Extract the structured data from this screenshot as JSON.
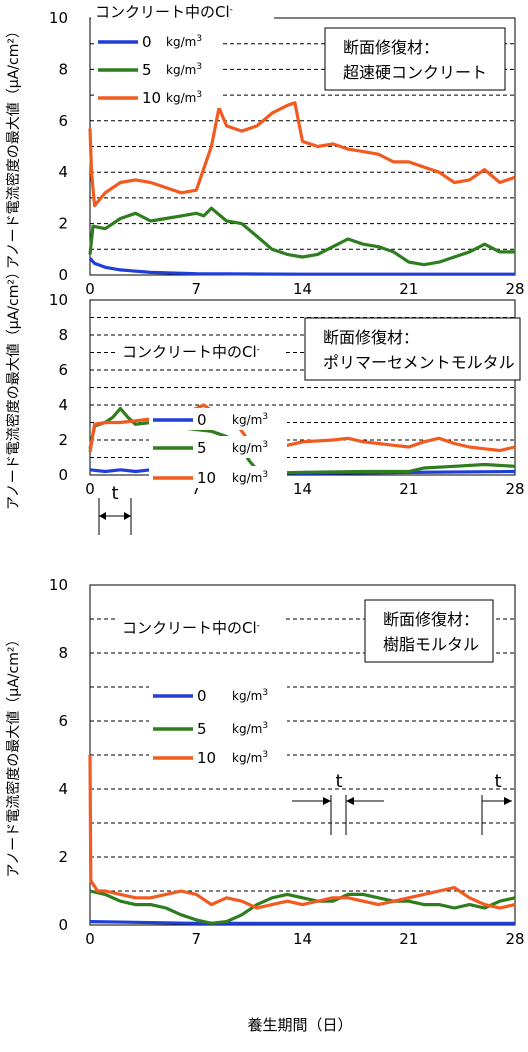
{
  "shared": {
    "xlabel": "養生期間（日）",
    "ylabel": "アノード電流密度の最大値（μA/cm²）",
    "legend_title_prefix": "コンクリート中のCl",
    "legend_title_sup": "-",
    "unit_label": "kg/m",
    "unit_sup": "3"
  },
  "chart_data": [
    {
      "type": "line",
      "box_line1": "断面修復材：",
      "box_line2": "超速硬コンクリート",
      "xlim": [
        0,
        28
      ],
      "ylim": [
        0,
        10
      ],
      "xticks": [
        "0",
        "7",
        "14",
        "21",
        "28"
      ],
      "yticks": [
        "0",
        "2",
        "4",
        "6",
        "8",
        "10"
      ],
      "grid": "horizontal dashed",
      "series": [
        {
          "name": "0",
          "color": "#1f3fd6",
          "points": [
            [
              0,
              0.65
            ],
            [
              0.3,
              0.45
            ],
            [
              1,
              0.3
            ],
            [
              2,
              0.2
            ],
            [
              4,
              0.1
            ],
            [
              7,
              0.05
            ],
            [
              14,
              0.03
            ],
            [
              28,
              0.03
            ]
          ]
        },
        {
          "name": "5",
          "color": "#2e7d1f",
          "points": [
            [
              0,
              0.8
            ],
            [
              0.2,
              1.9
            ],
            [
              1,
              1.8
            ],
            [
              2,
              2.2
            ],
            [
              3,
              2.4
            ],
            [
              4,
              2.1
            ],
            [
              5,
              2.2
            ],
            [
              6,
              2.3
            ],
            [
              7,
              2.4
            ],
            [
              7.5,
              2.3
            ],
            [
              8,
              2.6
            ],
            [
              9,
              2.1
            ],
            [
              10,
              2.0
            ],
            [
              11,
              1.5
            ],
            [
              12,
              1.0
            ],
            [
              13,
              0.8
            ],
            [
              14,
              0.7
            ],
            [
              15,
              0.8
            ],
            [
              16,
              1.1
            ],
            [
              17,
              1.4
            ],
            [
              18,
              1.2
            ],
            [
              19,
              1.1
            ],
            [
              20,
              0.9
            ],
            [
              21,
              0.5
            ],
            [
              22,
              0.4
            ],
            [
              23,
              0.5
            ],
            [
              24,
              0.7
            ],
            [
              25,
              0.9
            ],
            [
              26,
              1.2
            ],
            [
              27,
              0.9
            ],
            [
              28,
              0.9
            ]
          ]
        },
        {
          "name": "10",
          "color": "#f25a1f",
          "points": [
            [
              0,
              5.7
            ],
            [
              0.1,
              4.0
            ],
            [
              0.3,
              2.7
            ],
            [
              1,
              3.2
            ],
            [
              2,
              3.6
            ],
            [
              3,
              3.7
            ],
            [
              4,
              3.6
            ],
            [
              5,
              3.4
            ],
            [
              6,
              3.2
            ],
            [
              7,
              3.3
            ],
            [
              8,
              5.0
            ],
            [
              8.5,
              6.5
            ],
            [
              9,
              5.8
            ],
            [
              10,
              5.6
            ],
            [
              11,
              5.8
            ],
            [
              12,
              6.3
            ],
            [
              13,
              6.6
            ],
            [
              13.5,
              6.7
            ],
            [
              14,
              5.2
            ],
            [
              15,
              5.0
            ],
            [
              16,
              5.1
            ],
            [
              17,
              4.9
            ],
            [
              18,
              4.8
            ],
            [
              19,
              4.7
            ],
            [
              20,
              4.4
            ],
            [
              21,
              4.4
            ],
            [
              22,
              4.2
            ],
            [
              23,
              4.0
            ],
            [
              24,
              3.6
            ],
            [
              25,
              3.7
            ],
            [
              26,
              4.1
            ],
            [
              27,
              3.6
            ],
            [
              28,
              3.8
            ]
          ]
        }
      ]
    },
    {
      "type": "line",
      "box_line1": "断面修復材：",
      "box_line2": "ポリマーセメントモルタル",
      "xlim": [
        0,
        28
      ],
      "ylim": [
        0,
        10
      ],
      "xticks": [
        "0",
        "7",
        "14",
        "21",
        "28"
      ],
      "yticks": [
        "0",
        "2",
        "4",
        "6",
        "8",
        "10"
      ],
      "grid": "horizontal dashed",
      "annotation": "t",
      "series": [
        {
          "name": "0",
          "color": "#1f3fd6",
          "points": [
            [
              0,
              0.3
            ],
            [
              1,
              0.2
            ],
            [
              2,
              0.3
            ],
            [
              3,
              0.2
            ],
            [
              4,
              0.3
            ],
            [
              5,
              0.25
            ],
            [
              7,
              0.2
            ],
            [
              9,
              0.2
            ],
            [
              11,
              0.15
            ],
            [
              14,
              0.1
            ],
            [
              21,
              0.15
            ],
            [
              28,
              0.2
            ]
          ]
        },
        {
          "name": "5",
          "color": "#2e7d1f",
          "points": [
            [
              0,
              1.5
            ],
            [
              0.3,
              2.8
            ],
            [
              1,
              3.0
            ],
            [
              1.5,
              3.3
            ],
            [
              2,
              3.8
            ],
            [
              2.5,
              3.3
            ],
            [
              3,
              2.9
            ],
            [
              4,
              3.0
            ],
            [
              5,
              2.8
            ],
            [
              6,
              2.7
            ],
            [
              7,
              2.6
            ],
            [
              8,
              2.5
            ],
            [
              9,
              2.2
            ],
            [
              10,
              1.5
            ],
            [
              10.5,
              0.8
            ],
            [
              11,
              0.3
            ],
            [
              11.5,
              0.1
            ],
            [
              14,
              0.15
            ],
            [
              18,
              0.2
            ],
            [
              21,
              0.2
            ],
            [
              22,
              0.4
            ],
            [
              24,
              0.5
            ],
            [
              26,
              0.6
            ],
            [
              28,
              0.5
            ]
          ]
        },
        {
          "name": "10",
          "color": "#f25a1f",
          "points": [
            [
              0,
              1.3
            ],
            [
              0.3,
              2.9
            ],
            [
              1,
              3.0
            ],
            [
              2,
              3.0
            ],
            [
              3,
              3.1
            ],
            [
              4,
              3.2
            ],
            [
              5,
              3.3
            ],
            [
              6,
              3.5
            ],
            [
              7,
              3.8
            ],
            [
              7.5,
              4.0
            ],
            [
              8,
              3.7
            ],
            [
              9,
              3.6
            ],
            [
              10,
              2.5
            ],
            [
              11,
              1.3
            ],
            [
              11.5,
              1.2
            ],
            [
              12,
              1.6
            ],
            [
              13,
              1.7
            ],
            [
              14,
              1.9
            ],
            [
              16,
              2.0
            ],
            [
              17,
              2.1
            ],
            [
              18,
              1.9
            ],
            [
              19,
              1.8
            ],
            [
              20,
              1.7
            ],
            [
              21,
              1.6
            ],
            [
              22,
              1.9
            ],
            [
              23,
              2.1
            ],
            [
              24,
              1.8
            ],
            [
              25,
              1.6
            ],
            [
              26,
              1.5
            ],
            [
              27,
              1.4
            ],
            [
              28,
              1.6
            ]
          ]
        }
      ]
    },
    {
      "type": "line",
      "box_line1": "断面修復材：",
      "box_line2": "樹脂モルタル",
      "xlim": [
        0,
        28
      ],
      "ylim": [
        0,
        10
      ],
      "xticks": [
        "0",
        "7",
        "14",
        "21",
        "28"
      ],
      "yticks": [
        "0",
        "2",
        "4",
        "6",
        "8",
        "10"
      ],
      "grid": "horizontal dashed",
      "annotation": "t",
      "series": [
        {
          "name": "0",
          "color": "#1f3fd6",
          "points": [
            [
              0,
              0.1
            ],
            [
              7,
              0.05
            ],
            [
              14,
              0.05
            ],
            [
              21,
              0.05
            ],
            [
              28,
              0.05
            ]
          ]
        },
        {
          "name": "5",
          "color": "#2e7d1f",
          "points": [
            [
              0,
              1.0
            ],
            [
              1,
              0.9
            ],
            [
              2,
              0.7
            ],
            [
              3,
              0.6
            ],
            [
              4,
              0.6
            ],
            [
              5,
              0.5
            ],
            [
              6,
              0.3
            ],
            [
              7,
              0.15
            ],
            [
              8,
              0.05
            ],
            [
              9,
              0.1
            ],
            [
              10,
              0.3
            ],
            [
              11,
              0.6
            ],
            [
              12,
              0.8
            ],
            [
              13,
              0.9
            ],
            [
              14,
              0.8
            ],
            [
              15,
              0.7
            ],
            [
              16,
              0.7
            ],
            [
              17,
              0.9
            ],
            [
              18,
              0.9
            ],
            [
              19,
              0.8
            ],
            [
              20,
              0.7
            ],
            [
              21,
              0.7
            ],
            [
              22,
              0.6
            ],
            [
              23,
              0.6
            ],
            [
              24,
              0.5
            ],
            [
              25,
              0.6
            ],
            [
              26,
              0.5
            ],
            [
              27,
              0.7
            ],
            [
              28,
              0.8
            ]
          ]
        },
        {
          "name": "10",
          "color": "#f25a1f",
          "points": [
            [
              0,
              5.0
            ],
            [
              0.05,
              1.3
            ],
            [
              0.5,
              1.0
            ],
            [
              1,
              1.0
            ],
            [
              2,
              0.9
            ],
            [
              3,
              0.8
            ],
            [
              4,
              0.8
            ],
            [
              5,
              0.9
            ],
            [
              6,
              1.0
            ],
            [
              7,
              0.9
            ],
            [
              8,
              0.6
            ],
            [
              9,
              0.8
            ],
            [
              10,
              0.7
            ],
            [
              11,
              0.5
            ],
            [
              12,
              0.6
            ],
            [
              13,
              0.7
            ],
            [
              14,
              0.6
            ],
            [
              15,
              0.7
            ],
            [
              16,
              0.8
            ],
            [
              17,
              0.8
            ],
            [
              18,
              0.7
            ],
            [
              19,
              0.6
            ],
            [
              20,
              0.7
            ],
            [
              21,
              0.8
            ],
            [
              22,
              0.9
            ],
            [
              23,
              1.0
            ],
            [
              24,
              1.1
            ],
            [
              25,
              0.8
            ],
            [
              26,
              0.6
            ],
            [
              27,
              0.5
            ],
            [
              28,
              0.6
            ]
          ]
        }
      ]
    }
  ]
}
